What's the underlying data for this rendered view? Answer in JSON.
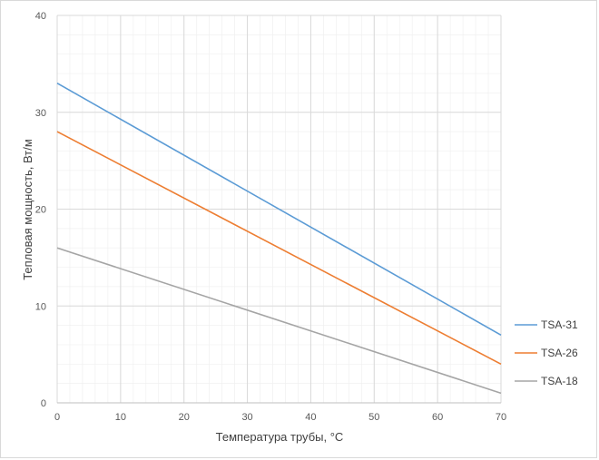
{
  "chart_data": {
    "type": "line",
    "title": "",
    "xlabel": "Температура трубы, °С",
    "ylabel": "Тепловая мощность, Вт/м",
    "xlim": [
      0,
      70
    ],
    "ylim": [
      0,
      40
    ],
    "xticks": [
      "0",
      "10",
      "20",
      "30",
      "40",
      "50",
      "60",
      "70"
    ],
    "yticks": [
      "0",
      "10",
      "20",
      "30",
      "40"
    ],
    "grid": true,
    "legend_position": "right",
    "series": [
      {
        "name": "TSA-31",
        "color": "#5b9bd5",
        "x": [
          0,
          70
        ],
        "y": [
          33,
          7
        ]
      },
      {
        "name": "TSA-26",
        "color": "#ed7d31",
        "x": [
          0,
          70
        ],
        "y": [
          28,
          4
        ]
      },
      {
        "name": "TSA-18",
        "color": "#a5a5a5",
        "x": [
          0,
          70
        ],
        "y": [
          16,
          1
        ]
      }
    ]
  }
}
